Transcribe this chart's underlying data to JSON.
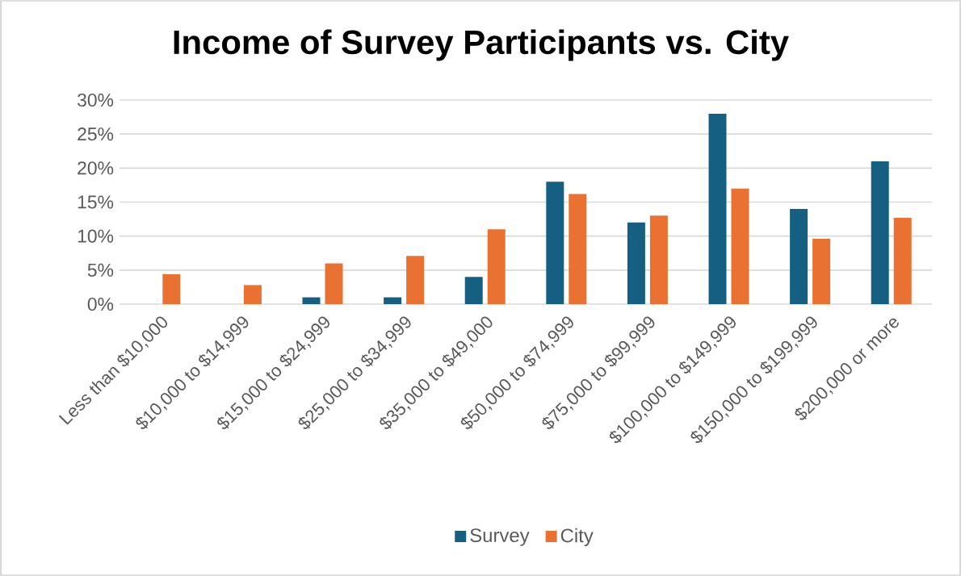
{
  "chart_data": {
    "type": "bar",
    "title": "Income of Survey Participants vs. City",
    "categories": [
      "Less than $10,000",
      "$10,000 to $14,999",
      "$15,000 to $24,999",
      "$25,000 to $34,999",
      "$35,000 to $49,000",
      "$50,000 to $74,999",
      "$75,000 to $99,999",
      "$100,000 to $149,999",
      "$150,000 to $199,999",
      "$200,000 or more"
    ],
    "series": [
      {
        "name": "Survey",
        "color": "#156082",
        "values": [
          0,
          0,
          1,
          1,
          4,
          18,
          12,
          28,
          14,
          21
        ]
      },
      {
        "name": "City",
        "color": "#e97132",
        "values": [
          4.4,
          2.8,
          6.0,
          7.1,
          11.0,
          16.2,
          13.0,
          17.0,
          9.6,
          12.7
        ]
      }
    ],
    "ylim": [
      0,
      30
    ],
    "yticks": [
      {
        "value": 0,
        "label": "0%"
      },
      {
        "value": 5,
        "label": "5%"
      },
      {
        "value": 10,
        "label": "10%"
      },
      {
        "value": 15,
        "label": "15%"
      },
      {
        "value": 20,
        "label": "20%"
      },
      {
        "value": 25,
        "label": "25%"
      },
      {
        "value": 30,
        "label": "30%"
      }
    ],
    "grid": "y",
    "legend": "bottom"
  }
}
